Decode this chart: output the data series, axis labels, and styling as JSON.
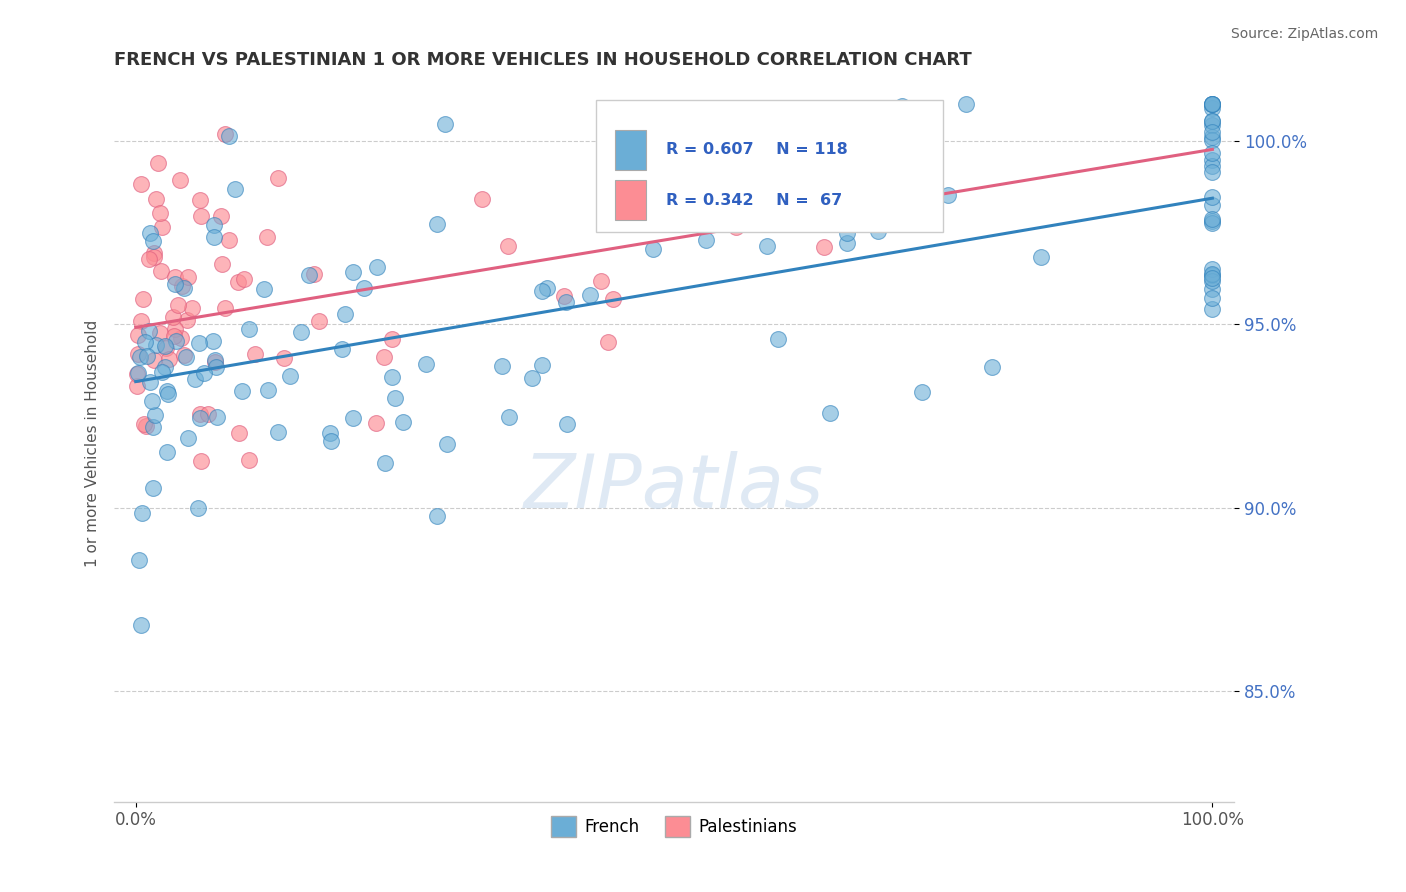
{
  "title": "FRENCH VS PALESTINIAN 1 OR MORE VEHICLES IN HOUSEHOLD CORRELATION CHART",
  "source_text": "Source: ZipAtlas.com",
  "ylabel": "1 or more Vehicles in Household",
  "legend_labels": [
    "French",
    "Palestinians"
  ],
  "french_R": "R = 0.607",
  "french_N": "N = 118",
  "palest_R": "R = 0.342",
  "palest_N": "N =  67",
  "french_color": "#6baed6",
  "palest_color": "#fc8d94",
  "french_line_color": "#3182bd",
  "palest_line_color": "#e06080",
  "legend_text_color": "#3060c0",
  "x_range": [
    0.0,
    100.0
  ],
  "y_range": [
    82.0,
    101.5
  ],
  "y_tick_vals": [
    85.0,
    90.0,
    95.0,
    100.0
  ],
  "y_tick_labels": [
    "85.0%",
    "90.0%",
    "95.0%",
    "100.0%"
  ]
}
